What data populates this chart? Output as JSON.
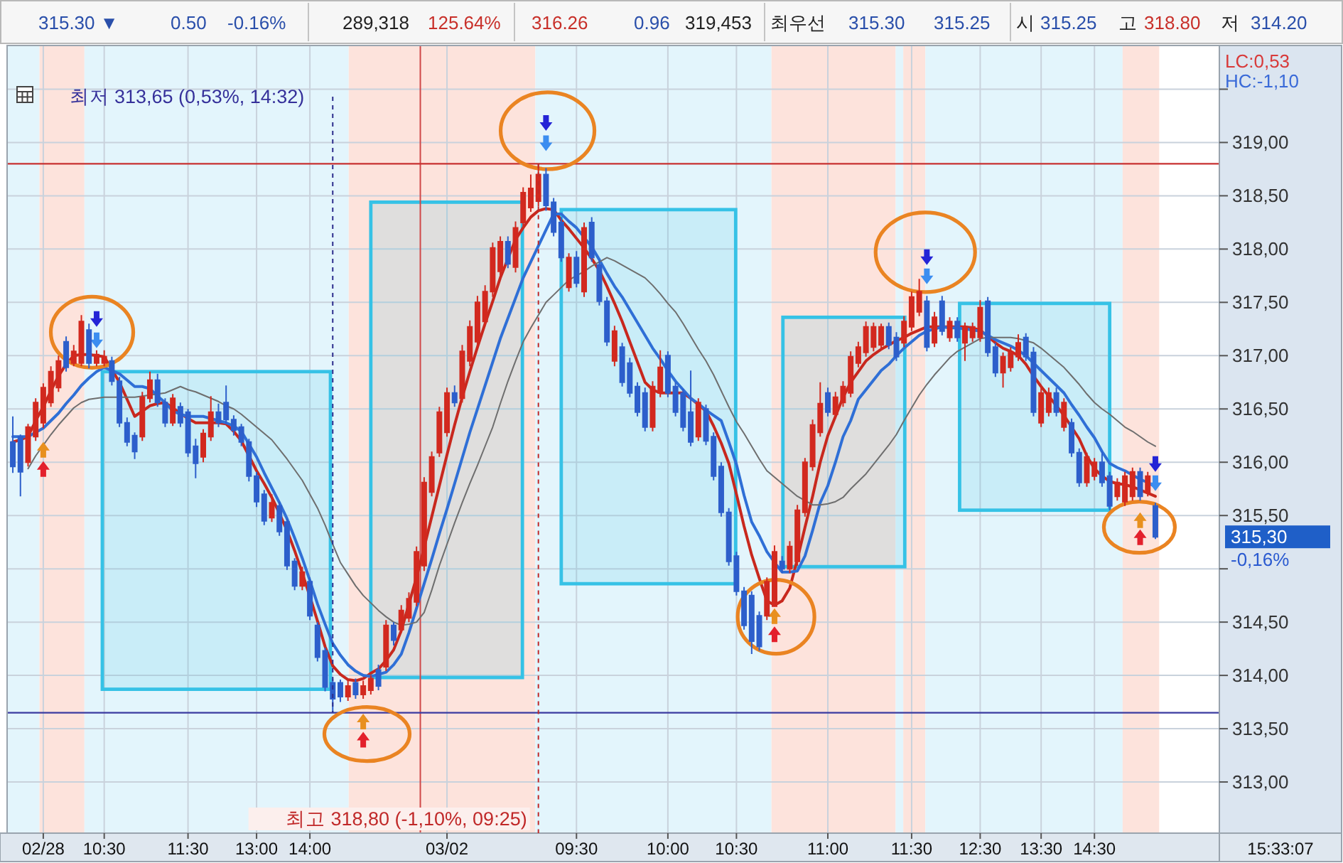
{
  "chart_data": {
    "type": "candlestick",
    "categories": [
      null,
      null,
      null,
      null,
      "02/28",
      null,
      null,
      null,
      null,
      null,
      null,
      null,
      "10:30",
      null,
      null,
      null,
      null,
      null,
      null,
      null,
      null,
      null,
      null,
      "11:30",
      null,
      null,
      null,
      null,
      null,
      null,
      null,
      null,
      "13:00",
      null,
      null,
      null,
      null,
      null,
      null,
      "14:00",
      null,
      null,
      null,
      null,
      null,
      null,
      null,
      null,
      null,
      null,
      null,
      null,
      null,
      null,
      null,
      null,
      null,
      "03/02",
      null,
      null,
      null,
      null,
      null,
      null,
      null,
      null,
      null,
      null,
      null,
      null,
      null,
      null,
      null,
      null,
      "09:30",
      null,
      null,
      null,
      null,
      null,
      null,
      null,
      null,
      null,
      null,
      null,
      "10:00",
      null,
      null,
      null,
      null,
      null,
      null,
      null,
      null,
      "10:30",
      null,
      null,
      null,
      null,
      null,
      null,
      null,
      null,
      null,
      null,
      null,
      "11:00",
      null,
      null,
      null,
      null,
      null,
      null,
      null,
      null,
      null,
      null,
      "11:30",
      null,
      null,
      null,
      null,
      null,
      null,
      null,
      null,
      "12:30",
      null,
      null,
      null,
      null,
      null,
      null,
      null,
      "13:30",
      null,
      null,
      null,
      null,
      null,
      null,
      "14:30",
      null,
      null,
      null,
      null,
      null,
      null,
      null,
      null
    ],
    "ohlc": [
      [
        316.19,
        316.43,
        315.9,
        315.96
      ],
      [
        316.24,
        316.26,
        315.68,
        315.91
      ],
      [
        316.0,
        316.36,
        315.96,
        316.33
      ],
      [
        316.24,
        316.6,
        316.2,
        316.56
      ],
      [
        316.37,
        316.74,
        316.32,
        316.7
      ],
      [
        316.56,
        316.9,
        316.52,
        316.85
      ],
      [
        316.7,
        317.0,
        316.66,
        316.95
      ],
      [
        317.13,
        317.18,
        316.85,
        316.89
      ],
      [
        316.93,
        317.1,
        316.9,
        317.04
      ],
      [
        316.93,
        317.38,
        316.9,
        317.32
      ],
      [
        317.24,
        317.3,
        316.88,
        316.93
      ],
      [
        316.93,
        317.05,
        316.9,
        317.01
      ],
      [
        316.93,
        317.05,
        316.9,
        316.99
      ],
      [
        316.95,
        316.99,
        316.72,
        316.76
      ],
      [
        316.76,
        316.8,
        316.33,
        316.37
      ],
      [
        316.37,
        316.42,
        316.15,
        316.19
      ],
      [
        316.25,
        316.28,
        316.03,
        316.1
      ],
      [
        316.24,
        316.66,
        316.2,
        316.61
      ],
      [
        316.6,
        316.85,
        316.56,
        316.77
      ],
      [
        316.77,
        316.83,
        316.52,
        316.56
      ],
      [
        316.56,
        316.6,
        316.33,
        316.37
      ],
      [
        316.37,
        316.64,
        316.34,
        316.6
      ],
      [
        316.52,
        316.56,
        316.33,
        316.37
      ],
      [
        316.47,
        316.5,
        316.05,
        316.09
      ],
      [
        316.15,
        316.22,
        315.85,
        315.99
      ],
      [
        316.05,
        316.31,
        316.0,
        316.27
      ],
      [
        316.24,
        316.62,
        316.2,
        316.47
      ],
      [
        316.47,
        316.55,
        316.33,
        316.37
      ],
      [
        316.56,
        316.72,
        316.36,
        316.4
      ],
      [
        316.4,
        316.44,
        316.25,
        316.3
      ],
      [
        316.33,
        316.36,
        316.15,
        316.19
      ],
      [
        316.19,
        316.22,
        315.82,
        315.87
      ],
      [
        315.87,
        315.91,
        315.58,
        315.63
      ],
      [
        315.7,
        315.74,
        315.41,
        315.45
      ],
      [
        315.48,
        315.7,
        315.44,
        315.62
      ],
      [
        315.59,
        315.63,
        315.31,
        315.35
      ],
      [
        315.44,
        315.47,
        314.99,
        315.03
      ],
      [
        315.07,
        315.1,
        314.8,
        314.84
      ],
      [
        314.84,
        315.02,
        314.8,
        314.97
      ],
      [
        314.88,
        314.92,
        314.52,
        314.56
      ],
      [
        314.47,
        314.5,
        314.13,
        314.17
      ],
      [
        314.23,
        314.26,
        313.85,
        313.89
      ],
      [
        313.93,
        313.97,
        313.65,
        313.78
      ],
      [
        313.93,
        313.96,
        313.75,
        313.8
      ],
      [
        313.8,
        313.95,
        313.76,
        313.9
      ],
      [
        313.93,
        313.97,
        313.78,
        313.82
      ],
      [
        313.82,
        313.95,
        313.78,
        313.9
      ],
      [
        313.86,
        314.0,
        313.82,
        313.97
      ],
      [
        314.05,
        314.1,
        313.86,
        313.9
      ],
      [
        314.08,
        314.52,
        314.04,
        314.47
      ],
      [
        314.47,
        314.5,
        314.28,
        314.33
      ],
      [
        314.43,
        314.66,
        314.4,
        314.61
      ],
      [
        314.54,
        314.78,
        314.5,
        314.72
      ],
      [
        314.69,
        315.21,
        314.65,
        315.16
      ],
      [
        315.03,
        315.86,
        314.98,
        315.81
      ],
      [
        315.72,
        316.1,
        315.68,
        316.05
      ],
      [
        316.09,
        316.52,
        316.05,
        316.47
      ],
      [
        316.28,
        316.7,
        316.24,
        316.65
      ],
      [
        316.65,
        316.72,
        316.52,
        316.56
      ],
      [
        316.6,
        317.1,
        316.56,
        317.04
      ],
      [
        316.95,
        317.33,
        316.9,
        317.27
      ],
      [
        317.13,
        317.56,
        317.08,
        317.5
      ],
      [
        317.32,
        317.66,
        317.28,
        317.6
      ],
      [
        317.6,
        318.06,
        317.55,
        318.01
      ],
      [
        317.79,
        318.12,
        317.75,
        318.07
      ],
      [
        318.07,
        318.12,
        317.82,
        317.86
      ],
      [
        317.83,
        318.26,
        317.78,
        318.2
      ],
      [
        318.25,
        318.58,
        318.2,
        318.53
      ],
      [
        318.39,
        318.7,
        318.35,
        318.57
      ],
      [
        318.45,
        318.8,
        318.4,
        318.7
      ],
      [
        318.7,
        318.76,
        318.36,
        318.41
      ],
      [
        318.44,
        318.48,
        318.12,
        318.16
      ],
      [
        318.25,
        318.3,
        317.88,
        317.92
      ],
      [
        317.64,
        317.96,
        317.6,
        317.92
      ],
      [
        317.92,
        317.98,
        317.64,
        317.68
      ],
      [
        317.6,
        318.25,
        317.55,
        318.2
      ],
      [
        318.25,
        318.3,
        317.88,
        317.92
      ],
      [
        317.85,
        317.9,
        317.47,
        317.51
      ],
      [
        317.51,
        317.55,
        317.09,
        317.13
      ],
      [
        316.95,
        317.28,
        316.9,
        317.23
      ],
      [
        317.08,
        317.12,
        316.71,
        316.75
      ],
      [
        316.93,
        316.98,
        316.61,
        316.65
      ],
      [
        316.71,
        316.75,
        316.43,
        316.47
      ],
      [
        316.65,
        316.7,
        316.29,
        316.33
      ],
      [
        316.33,
        316.76,
        316.29,
        316.71
      ],
      [
        316.65,
        317.05,
        316.61,
        316.89
      ],
      [
        317.0,
        317.04,
        316.61,
        316.65
      ],
      [
        316.71,
        316.75,
        316.43,
        316.47
      ],
      [
        316.65,
        316.69,
        316.29,
        316.33
      ],
      [
        316.47,
        316.86,
        316.15,
        316.19
      ],
      [
        316.24,
        316.6,
        316.2,
        316.56
      ],
      [
        316.5,
        316.54,
        316.16,
        316.2
      ],
      [
        316.24,
        316.28,
        315.83,
        315.87
      ],
      [
        315.96,
        316.0,
        315.49,
        315.53
      ],
      [
        315.53,
        315.57,
        315.03,
        315.07
      ],
      [
        315.12,
        315.16,
        314.75,
        314.79
      ],
      [
        314.79,
        314.83,
        314.43,
        314.47
      ],
      [
        314.75,
        314.79,
        314.2,
        314.32
      ],
      [
        314.56,
        314.6,
        314.23,
        314.27
      ],
      [
        314.56,
        314.92,
        314.52,
        314.88
      ],
      [
        314.65,
        315.22,
        314.65,
        315.16
      ],
      [
        315.07,
        315.12,
        314.96,
        315.0
      ],
      [
        315.0,
        315.26,
        314.96,
        315.21
      ],
      [
        315.07,
        315.6,
        315.03,
        315.55
      ],
      [
        315.53,
        316.04,
        315.49,
        316.0
      ],
      [
        315.96,
        316.4,
        315.92,
        316.35
      ],
      [
        316.28,
        316.75,
        316.24,
        316.55
      ],
      [
        316.65,
        316.7,
        316.43,
        316.47
      ],
      [
        316.45,
        316.66,
        316.41,
        316.61
      ],
      [
        316.56,
        316.76,
        316.52,
        316.71
      ],
      [
        316.65,
        317.04,
        316.61,
        316.99
      ],
      [
        316.93,
        317.13,
        316.89,
        317.08
      ],
      [
        317.03,
        317.32,
        316.99,
        317.27
      ],
      [
        317.08,
        317.31,
        317.04,
        317.27
      ],
      [
        317.1,
        317.3,
        317.05,
        317.27
      ],
      [
        317.27,
        317.31,
        317.06,
        317.1
      ],
      [
        317.17,
        317.22,
        316.95,
        316.99
      ],
      [
        317.12,
        317.37,
        317.08,
        317.32
      ],
      [
        317.27,
        317.6,
        317.23,
        317.55
      ],
      [
        317.41,
        317.72,
        317.37,
        317.6
      ],
      [
        317.51,
        317.56,
        317.04,
        317.08
      ],
      [
        317.12,
        317.41,
        317.08,
        317.36
      ],
      [
        317.51,
        317.56,
        317.19,
        317.23
      ],
      [
        317.17,
        317.36,
        317.13,
        317.32
      ],
      [
        317.32,
        317.36,
        317.13,
        317.17
      ],
      [
        317.12,
        317.31,
        316.95,
        317.27
      ],
      [
        317.17,
        317.31,
        317.13,
        317.27
      ],
      [
        317.17,
        317.52,
        317.13,
        317.45
      ],
      [
        317.51,
        317.55,
        316.99,
        317.03
      ],
      [
        317.08,
        317.12,
        316.8,
        316.84
      ],
      [
        316.84,
        317.03,
        316.7,
        316.99
      ],
      [
        316.89,
        317.08,
        316.85,
        317.03
      ],
      [
        316.99,
        317.2,
        316.95,
        317.12
      ],
      [
        317.17,
        317.21,
        316.95,
        316.99
      ],
      [
        317.03,
        317.08,
        316.43,
        316.47
      ],
      [
        316.37,
        316.7,
        316.33,
        316.65
      ],
      [
        316.47,
        316.7,
        316.43,
        316.65
      ],
      [
        316.65,
        316.7,
        316.43,
        316.47
      ],
      [
        316.33,
        316.6,
        316.29,
        316.56
      ],
      [
        316.37,
        316.41,
        316.05,
        316.09
      ],
      [
        316.09,
        316.13,
        315.77,
        315.81
      ],
      [
        315.81,
        316.09,
        315.77,
        316.05
      ],
      [
        315.87,
        316.04,
        315.83,
        316.0
      ],
      [
        316.0,
        316.1,
        315.77,
        315.81
      ],
      [
        315.87,
        315.91,
        315.55,
        315.59
      ],
      [
        315.68,
        315.85,
        315.64,
        315.81
      ],
      [
        315.63,
        315.91,
        315.59,
        315.87
      ],
      [
        315.68,
        315.95,
        315.64,
        315.91
      ],
      [
        315.91,
        315.95,
        315.64,
        315.68
      ],
      [
        315.72,
        315.91,
        315.68,
        315.87
      ],
      [
        315.59,
        315.62,
        315.28,
        315.3
      ]
    ],
    "colors": [
      "#2d5fcb",
      "#2d5fcb",
      "#d2291f",
      "#d2291f",
      "#d2291f",
      "#d2291f",
      "#d2291f",
      "#2d5fcb",
      "#d2291f",
      "#d2291f",
      "#2d5fcb",
      "#d2291f",
      "#d2291f",
      "#2d5fcb",
      "#2d5fcb",
      "#2d5fcb",
      "#2d5fcb",
      "#d2291f",
      "#d2291f",
      "#2d5fcb",
      "#2d5fcb",
      "#d2291f",
      "#2d5fcb",
      "#2d5fcb",
      "#2d5fcb",
      "#d2291f",
      "#d2291f",
      "#2d5fcb",
      "#2d5fcb",
      "#2d5fcb",
      "#2d5fcb",
      "#2d5fcb",
      "#2d5fcb",
      "#2d5fcb",
      "#d2291f",
      "#2d5fcb",
      "#2d5fcb",
      "#2d5fcb",
      "#d2291f",
      "#2d5fcb",
      "#2d5fcb",
      "#2d5fcb",
      "#2d5fcb",
      "#2d5fcb",
      "#d2291f",
      "#2d5fcb",
      "#d2291f",
      "#d2291f",
      "#2d5fcb",
      "#d2291f",
      "#2d5fcb",
      "#d2291f",
      "#d2291f",
      "#d2291f",
      "#d2291f",
      "#d2291f",
      "#d2291f",
      "#d2291f",
      "#2d5fcb",
      "#d2291f",
      "#d2291f",
      "#d2291f",
      "#d2291f",
      "#d2291f",
      "#d2291f",
      "#2d5fcb",
      "#d2291f",
      "#d2291f",
      "#d2291f",
      "#d2291f",
      "#2d5fcb",
      "#2d5fcb",
      "#2d5fcb",
      "#d2291f",
      "#2d5fcb",
      "#d2291f",
      "#2d5fcb",
      "#2d5fcb",
      "#2d5fcb",
      "#d2291f",
      "#2d5fcb",
      "#2d5fcb",
      "#2d5fcb",
      "#2d5fcb",
      "#d2291f",
      "#d2291f",
      "#2d5fcb",
      "#2d5fcb",
      "#2d5fcb",
      "#2d5fcb",
      "#d2291f",
      "#2d5fcb",
      "#2d5fcb",
      "#2d5fcb",
      "#2d5fcb",
      "#2d5fcb",
      "#2d5fcb",
      "#2d5fcb",
      "#2d5fcb",
      "#d2291f",
      "#d2291f",
      "#2d5fcb",
      "#d2291f",
      "#d2291f",
      "#d2291f",
      "#d2291f",
      "#d2291f",
      "#2d5fcb",
      "#d2291f",
      "#d2291f",
      "#d2291f",
      "#d2291f",
      "#d2291f",
      "#d2291f",
      "#d2291f",
      "#2d5fcb",
      "#2d5fcb",
      "#d2291f",
      "#d2291f",
      "#d2291f",
      "#2d5fcb",
      "#d2291f",
      "#2d5fcb",
      "#d2291f",
      "#2d5fcb",
      "#d2291f",
      "#d2291f",
      "#d2291f",
      "#2d5fcb",
      "#2d5fcb",
      "#d2291f",
      "#d2291f",
      "#d2291f",
      "#2d5fcb",
      "#2d5fcb",
      "#d2291f",
      "#d2291f",
      "#2d5fcb",
      "#d2291f",
      "#2d5fcb",
      "#2d5fcb",
      "#d2291f",
      "#d2291f",
      "#2d5fcb",
      "#2d5fcb",
      "#d2291f",
      "#d2291f",
      "#d2291f",
      "#2d5fcb",
      "#d2291f",
      "#2d5fcb"
    ],
    "series": [
      {
        "type": "line",
        "color": "#c8281e",
        "values": [
          316.19,
          316.21,
          316.24,
          316.39,
          316.52,
          316.67,
          316.81,
          316.92,
          317.0,
          317.01,
          317.01,
          317.0,
          316.99,
          316.87,
          316.75,
          316.59,
          316.43,
          316.48,
          316.53,
          316.55,
          316.56,
          316.51,
          316.46,
          316.41,
          316.37,
          316.37,
          316.37,
          316.37,
          316.36,
          316.29,
          316.2,
          316.06,
          315.92,
          315.8,
          315.67,
          315.52,
          315.36,
          315.17,
          314.96,
          314.74,
          314.51,
          314.27,
          314.09,
          314.01,
          313.96,
          313.95,
          313.97,
          314.02,
          314.06,
          314.14,
          314.24,
          314.42,
          314.67,
          314.92,
          315.2,
          315.49,
          315.78,
          316.07,
          316.35,
          316.61,
          316.85,
          317.08,
          317.3,
          317.51,
          317.73,
          317.91,
          318.09,
          318.2,
          318.3,
          318.36,
          318.38,
          318.37,
          318.27,
          318.19,
          318.1,
          318.01,
          317.91,
          317.8,
          317.65,
          317.49,
          317.32,
          317.13,
          316.94,
          316.75,
          316.68,
          316.65,
          316.65,
          316.65,
          316.65,
          316.6,
          316.54,
          316.48,
          316.34,
          316.18,
          315.99,
          315.7,
          315.4,
          315.13,
          314.91,
          314.7,
          314.66,
          314.7,
          314.82,
          315.09,
          315.39,
          315.68,
          316.0,
          316.25,
          316.43,
          316.61,
          316.75,
          316.85,
          316.95,
          317.01,
          317.06,
          317.1,
          317.14,
          317.17,
          317.21,
          317.24,
          317.27,
          317.27,
          317.27,
          317.27,
          317.27,
          317.27,
          317.26,
          317.24,
          317.18,
          317.12,
          317.07,
          317.04,
          317.0,
          316.92,
          316.81,
          316.71,
          316.62,
          316.53,
          316.44,
          316.33,
          316.22,
          316.06,
          315.94,
          315.87,
          315.82,
          315.8,
          315.79,
          315.77,
          315.74,
          315.71,
          315.68
        ]
      },
      {
        "type": "line",
        "color": "#2f6fd6",
        "values": [
          316.24,
          316.24,
          316.24,
          316.28,
          316.32,
          316.39,
          316.46,
          316.55,
          316.63,
          316.72,
          316.79,
          316.85,
          316.89,
          316.86,
          316.83,
          316.77,
          316.71,
          316.71,
          316.69,
          316.62,
          316.56,
          316.48,
          316.45,
          316.43,
          316.43,
          316.43,
          316.41,
          316.39,
          316.37,
          316.34,
          316.29,
          316.17,
          316.05,
          315.9,
          315.76,
          315.62,
          315.47,
          315.29,
          315.1,
          314.89,
          314.67,
          314.48,
          314.3,
          314.19,
          314.1,
          314.04,
          314.0,
          313.99,
          314.01,
          314.03,
          314.1,
          314.2,
          314.4,
          314.63,
          314.86,
          315.09,
          315.33,
          315.56,
          315.8,
          316.04,
          316.28,
          316.5,
          316.72,
          316.94,
          317.16,
          317.35,
          317.54,
          317.73,
          317.88,
          318.03,
          318.18,
          318.33,
          318.33,
          318.26,
          318.2,
          318.11,
          318.02,
          317.9,
          317.77,
          317.65,
          317.55,
          317.43,
          317.31,
          317.19,
          317.07,
          316.97,
          316.86,
          316.76,
          316.68,
          316.6,
          316.55,
          316.49,
          316.44,
          316.39,
          316.19,
          315.98,
          315.69,
          315.44,
          315.31,
          315.16,
          315.06,
          314.97,
          314.97,
          314.98,
          315.12,
          315.36,
          315.62,
          315.78,
          316.0,
          316.24,
          316.39,
          316.59,
          316.68,
          316.77,
          316.86,
          316.92,
          317.0,
          317.07,
          317.13,
          317.19,
          317.23,
          317.25,
          317.27,
          317.26,
          317.26,
          317.25,
          317.24,
          317.23,
          317.19,
          317.15,
          317.12,
          317.09,
          317.05,
          317.0,
          316.93,
          316.86,
          316.79,
          316.72,
          316.65,
          316.54,
          316.44,
          316.33,
          316.23,
          316.1,
          315.99,
          315.95,
          315.92,
          315.88,
          315.84,
          315.81,
          315.77
        ]
      },
      {
        "type": "line",
        "color": "#6e6e6e",
        "values": [
          null,
          null,
          315.94,
          316.06,
          316.16,
          316.26,
          316.35,
          316.43,
          316.51,
          316.56,
          316.59,
          316.6,
          316.61,
          316.61,
          316.61,
          316.61,
          316.61,
          316.62,
          316.63,
          316.64,
          316.65,
          316.68,
          316.71,
          316.68,
          316.66,
          316.63,
          316.6,
          316.57,
          316.53,
          316.5,
          316.45,
          316.39,
          316.33,
          316.27,
          316.21,
          316.12,
          316.03,
          315.93,
          315.83,
          315.7,
          315.57,
          315.41,
          315.23,
          315.06,
          314.95,
          314.84,
          314.75,
          314.68,
          314.61,
          314.55,
          314.5,
          314.47,
          314.48,
          314.5,
          314.59,
          314.8,
          315.03,
          315.23,
          315.43,
          315.62,
          315.8,
          315.97,
          316.15,
          316.33,
          316.55,
          316.76,
          316.95,
          317.13,
          317.26,
          317.38,
          317.5,
          317.57,
          317.64,
          317.71,
          317.75,
          317.79,
          317.84,
          317.88,
          317.92,
          317.89,
          317.85,
          317.81,
          317.77,
          317.73,
          317.66,
          317.58,
          317.49,
          317.41,
          317.3,
          317.18,
          317.06,
          316.95,
          316.82,
          316.67,
          316.52,
          316.38,
          316.27,
          316.15,
          316.03,
          315.92,
          315.86,
          315.8,
          315.74,
          315.68,
          315.64,
          315.6,
          315.6,
          315.61,
          315.63,
          315.67,
          315.75,
          315.82,
          315.89,
          315.98,
          316.07,
          316.16,
          316.26,
          316.39,
          316.51,
          316.63,
          316.73,
          316.82,
          316.9,
          316.98,
          317.04,
          317.08,
          317.12,
          317.16,
          317.17,
          317.17,
          317.17,
          317.17,
          317.16,
          317.14,
          317.12,
          317.07,
          317.01,
          316.95,
          316.89,
          316.81,
          316.73,
          316.64,
          316.56,
          316.5,
          316.45,
          316.39,
          316.33,
          316.29,
          316.24,
          316.19,
          316.15
        ]
      },
      {
        "type": "scatter",
        "color": "#e8901e",
        "marker": "triangle",
        "values": [
          null,
          null,
          null,
          null,
          316.11,
          null,
          null,
          null,
          null,
          null,
          null,
          null,
          null,
          null,
          null,
          null,
          null,
          null,
          null,
          null,
          null,
          null,
          null,
          null,
          null,
          null,
          null,
          null,
          null,
          null,
          null,
          null,
          null,
          null,
          null,
          null,
          null,
          null,
          null,
          null,
          null,
          null,
          null,
          null,
          null,
          null,
          313.56,
          null,
          null,
          null,
          null,
          null,
          null,
          null,
          null,
          null,
          null,
          null,
          null,
          null,
          null,
          null,
          null,
          null,
          null,
          null,
          null,
          null,
          null,
          null,
          null,
          null,
          null,
          null,
          null,
          null,
          null,
          null,
          null,
          null,
          null,
          null,
          null,
          null,
          null,
          null,
          null,
          null,
          null,
          null,
          null,
          null,
          null,
          null,
          null,
          null,
          null,
          null,
          null,
          null,
          314.55,
          null,
          null,
          null,
          null,
          null,
          null,
          null,
          null,
          null,
          null,
          null,
          null,
          null,
          null,
          null,
          null,
          null,
          null,
          null,
          null,
          null,
          null,
          null,
          null,
          null,
          null,
          null,
          null,
          null,
          null,
          null,
          null,
          null,
          null,
          null,
          null,
          null,
          null,
          null,
          null,
          null,
          null,
          null,
          null,
          null,
          null,
          null,
          315.45,
          null,
          null
        ]
      },
      {
        "type": "scatter",
        "color": "#e3202c",
        "marker": "triangle",
        "values": [
          null,
          null,
          null,
          null,
          315.93,
          null,
          null,
          null,
          null,
          null,
          null,
          null,
          null,
          null,
          null,
          null,
          null,
          null,
          null,
          null,
          null,
          null,
          null,
          null,
          null,
          null,
          null,
          null,
          null,
          null,
          null,
          null,
          null,
          null,
          null,
          null,
          null,
          null,
          null,
          null,
          null,
          null,
          null,
          null,
          null,
          null,
          313.39,
          null,
          null,
          null,
          null,
          null,
          null,
          null,
          null,
          null,
          null,
          null,
          null,
          null,
          null,
          null,
          null,
          null,
          null,
          null,
          null,
          null,
          null,
          null,
          null,
          null,
          null,
          null,
          null,
          null,
          null,
          null,
          null,
          null,
          null,
          null,
          null,
          null,
          null,
          null,
          null,
          null,
          null,
          null,
          null,
          null,
          null,
          null,
          null,
          null,
          null,
          null,
          null,
          null,
          314.38,
          null,
          null,
          null,
          null,
          null,
          null,
          null,
          null,
          null,
          null,
          null,
          null,
          null,
          null,
          null,
          null,
          null,
          null,
          null,
          null,
          null,
          null,
          null,
          null,
          null,
          null,
          null,
          null,
          null,
          null,
          null,
          null,
          null,
          null,
          null,
          null,
          null,
          null,
          null,
          null,
          null,
          null,
          null,
          null,
          null,
          null,
          null,
          315.29,
          null,
          null
        ]
      },
      {
        "type": "scatter",
        "color": "#2424d6",
        "marker": "triangle",
        "values": [
          null,
          null,
          null,
          null,
          null,
          null,
          null,
          null,
          null,
          null,
          null,
          317.35,
          null,
          null,
          null,
          null,
          null,
          null,
          null,
          null,
          null,
          null,
          null,
          null,
          null,
          null,
          null,
          null,
          null,
          null,
          null,
          null,
          null,
          null,
          null,
          null,
          null,
          null,
          null,
          null,
          null,
          null,
          null,
          null,
          null,
          null,
          null,
          null,
          null,
          null,
          null,
          null,
          null,
          null,
          null,
          null,
          null,
          null,
          null,
          null,
          null,
          null,
          null,
          null,
          null,
          null,
          null,
          null,
          null,
          null,
          319.19,
          null,
          null,
          null,
          null,
          null,
          null,
          null,
          null,
          null,
          null,
          null,
          null,
          null,
          null,
          null,
          null,
          null,
          null,
          null,
          null,
          null,
          null,
          null,
          null,
          null,
          null,
          null,
          null,
          null,
          null,
          null,
          null,
          null,
          null,
          null,
          null,
          null,
          null,
          null,
          null,
          null,
          null,
          null,
          null,
          null,
          null,
          null,
          null,
          null,
          317.93,
          null,
          null,
          null,
          null,
          null,
          null,
          null,
          null,
          null,
          null,
          null,
          null,
          null,
          null,
          null,
          null,
          null,
          null,
          null,
          null,
          null,
          null,
          null,
          null,
          null,
          null,
          null,
          null,
          null,
          315.99
        ]
      },
      {
        "type": "scatter",
        "color": "#3b8df0",
        "marker": "triangle",
        "values": [
          null,
          null,
          null,
          null,
          null,
          null,
          null,
          null,
          null,
          null,
          null,
          317.15,
          null,
          null,
          null,
          null,
          null,
          null,
          null,
          null,
          null,
          null,
          null,
          null,
          null,
          null,
          null,
          null,
          null,
          null,
          null,
          null,
          null,
          null,
          null,
          null,
          null,
          null,
          null,
          null,
          null,
          null,
          null,
          null,
          null,
          null,
          null,
          null,
          null,
          null,
          null,
          null,
          null,
          null,
          null,
          null,
          null,
          null,
          null,
          null,
          null,
          null,
          null,
          null,
          null,
          null,
          null,
          null,
          null,
          null,
          319.0,
          null,
          null,
          null,
          null,
          null,
          null,
          null,
          null,
          null,
          null,
          null,
          null,
          null,
          null,
          null,
          null,
          null,
          null,
          null,
          null,
          null,
          null,
          null,
          null,
          null,
          null,
          null,
          null,
          null,
          null,
          null,
          null,
          null,
          null,
          null,
          null,
          null,
          null,
          null,
          null,
          null,
          null,
          null,
          null,
          null,
          null,
          null,
          null,
          null,
          317.75,
          null,
          null,
          null,
          null,
          null,
          null,
          null,
          null,
          null,
          null,
          null,
          null,
          null,
          null,
          null,
          null,
          null,
          null,
          null,
          null,
          null,
          null,
          null,
          null,
          null,
          null,
          null,
          null,
          null,
          315.81
        ]
      }
    ],
    "ylim": [
      312.52,
      319.91
    ],
    "yticks": [
      {
        "value": 313,
        "label": "313,00"
      },
      {
        "value": 313.5,
        "label": "313,50"
      },
      {
        "value": 314,
        "label": "314,00"
      },
      {
        "value": 314.5,
        "label": "314,50"
      },
      {
        "value": 315,
        "label": null
      },
      {
        "value": 315.5,
        "label": "315,50"
      },
      {
        "value": 316,
        "label": "316,00"
      },
      {
        "value": 316.5,
        "label": "316,50"
      },
      {
        "value": 317,
        "label": "317,00"
      },
      {
        "value": 317.5,
        "label": "317,50"
      },
      {
        "value": 318,
        "label": "318,00"
      },
      {
        "value": 318.5,
        "label": "318,50"
      },
      {
        "value": 319,
        "label": "319,00"
      },
      {
        "value": 319.5,
        "label": null
      }
    ],
    "grid": true,
    "ref_lines": [
      {
        "axis": "y",
        "value": 318.8,
        "color": "#c83030"
      },
      {
        "axis": "y",
        "value": 313.65,
        "color": "#3a3aa0"
      }
    ],
    "annotations": [
      "최저 313,65 (0,53%, 14:32)",
      "최고 318,80 (-1,10%, 09:25)",
      "LC:0,53",
      "HC:-1,10",
      "315,30",
      "-0,16%",
      "15:33:07",
      "315.30 ▼",
      "0.50",
      "-0.16%",
      "289,318",
      "125.64%",
      "316.26",
      "0.96",
      "319,453",
      "최우선",
      "315.30",
      "315.25",
      "시",
      "315.25",
      "고",
      "318.80",
      "저",
      "314.20"
    ]
  }
}
